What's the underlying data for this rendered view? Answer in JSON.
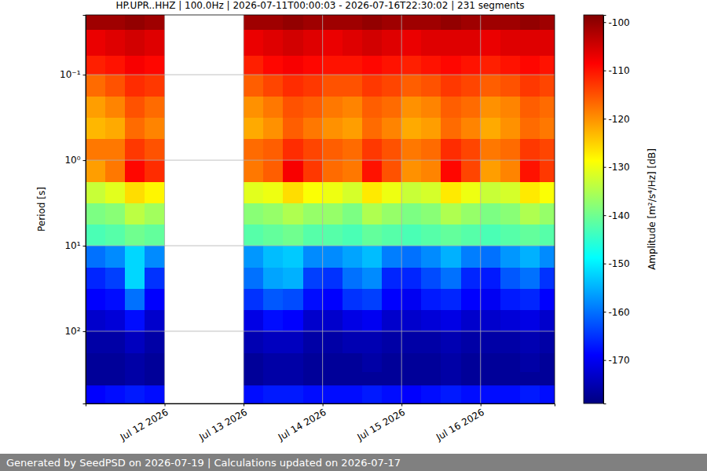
{
  "chart_data": {
    "type": "heatmap",
    "title": "HP.UPR..HHZ | 100.0Hz | 2026-07-11T00:00:03 - 2026-07-16T22:30:02 | 231 segments",
    "y_label": "Period [s]",
    "footer": "Generated by SeedPSD on 2026-07-19 | Calculations updated on 2026-07-17",
    "log": "y",
    "grid": true,
    "xlim": [
      "2026-07-11T00:00:03",
      "2026-07-16T22:30:02"
    ],
    "xticks": [
      {
        "value": "2026-07-12T00:00:00",
        "label": "Jul 12 2026"
      },
      {
        "value": "2026-07-13T00:00:00",
        "label": "Jul 13 2026"
      },
      {
        "value": "2026-07-14T00:00:00",
        "label": "Jul 14 2026"
      },
      {
        "value": "2026-07-15T00:00:00",
        "label": "Jul 15 2026"
      },
      {
        "value": "2026-07-16T00:00:00",
        "label": "Jul 16 2026"
      }
    ],
    "ylim": [
      0.02,
      700
    ],
    "yticks": [
      {
        "value": 0.1,
        "label": "10⁻¹"
      },
      {
        "value": 1,
        "label": "10⁰"
      },
      {
        "value": 10,
        "label": "10¹"
      },
      {
        "value": 100,
        "label": "10²"
      }
    ],
    "x_bins": [
      "2026-07-11T00:00:03",
      "2026-07-11T06:00:00",
      "2026-07-11T12:00:00",
      "2026-07-11T18:00:00",
      "2026-07-12T00:00:00",
      "2026-07-12T06:00:00",
      "2026-07-12T12:00:00",
      "2026-07-12T18:00:00",
      "2026-07-13T00:00:00",
      "2026-07-13T06:00:00",
      "2026-07-13T12:00:00",
      "2026-07-13T18:00:00",
      "2026-07-14T00:00:00",
      "2026-07-14T06:00:00",
      "2026-07-14T12:00:00",
      "2026-07-14T18:00:00",
      "2026-07-15T00:00:00",
      "2026-07-15T06:00:00",
      "2026-07-15T12:00:00",
      "2026-07-15T18:00:00",
      "2026-07-16T00:00:00",
      "2026-07-16T06:00:00",
      "2026-07-16T12:00:00",
      "2026-07-16T18:00:00",
      "2026-07-16T22:30:02"
    ],
    "y_bins": [
      0.02,
      0.03,
      0.06,
      0.1,
      0.18,
      0.32,
      0.56,
      1,
      1.8,
      3.2,
      5.6,
      10,
      18,
      32,
      56,
      100,
      180,
      300,
      430,
      700
    ],
    "values": [
      [
        -101,
        -101,
        -100,
        -101,
        null,
        null,
        null,
        null,
        -101,
        -101,
        -100,
        -101,
        -101,
        -101,
        -100,
        -101,
        -101,
        -101,
        -100,
        -101,
        -101,
        -101,
        -100,
        -101
      ],
      [
        -107,
        -106,
        -105,
        -106,
        null,
        null,
        null,
        null,
        -107,
        -106,
        -105,
        -106,
        -107,
        -106,
        -105,
        -106,
        -107,
        -106,
        -106,
        -106,
        -107,
        -106,
        -106,
        -106
      ],
      [
        -111,
        -110,
        -108,
        -109,
        null,
        null,
        null,
        null,
        -111,
        -109,
        -108,
        -109,
        -110,
        -110,
        -109,
        -110,
        -111,
        -110,
        -109,
        -110,
        -111,
        -110,
        -109,
        -110
      ],
      [
        -117,
        -115,
        -112,
        -113,
        null,
        null,
        null,
        null,
        -116,
        -114,
        -112,
        -113,
        -115,
        -115,
        -113,
        -114,
        -116,
        -115,
        -113,
        -114,
        -116,
        -115,
        -113,
        -114
      ],
      [
        -121,
        -119,
        -115,
        -117,
        null,
        null,
        null,
        null,
        -120,
        -118,
        -115,
        -116,
        -118,
        -119,
        -116,
        -117,
        -120,
        -119,
        -116,
        -117,
        -120,
        -119,
        -116,
        -117
      ],
      [
        -123,
        -122,
        -117,
        -119,
        null,
        null,
        null,
        null,
        -122,
        -120,
        -116,
        -118,
        -120,
        -121,
        -117,
        -119,
        -122,
        -121,
        -117,
        -119,
        -122,
        -120,
        -117,
        -118
      ],
      [
        -118,
        -118,
        -113,
        -115,
        null,
        null,
        null,
        null,
        -117,
        -116,
        -112,
        -114,
        -116,
        -117,
        -113,
        -115,
        -118,
        -117,
        -112,
        -114,
        -118,
        -117,
        -113,
        -114
      ],
      [
        -121,
        -118,
        -109,
        -112,
        null,
        null,
        null,
        null,
        -118,
        -116,
        -108,
        -113,
        -117,
        -118,
        -110,
        -115,
        -120,
        -119,
        -109,
        -114,
        -121,
        -119,
        -110,
        -113
      ],
      [
        -133,
        -131,
        -126,
        -128,
        null,
        null,
        null,
        null,
        -131,
        -130,
        -126,
        -129,
        -130,
        -132,
        -127,
        -130,
        -133,
        -132,
        -127,
        -130,
        -133,
        -132,
        -127,
        -129
      ],
      [
        -139,
        -138,
        -134,
        -136,
        null,
        null,
        null,
        null,
        -138,
        -137,
        -135,
        -137,
        -137,
        -139,
        -135,
        -137,
        -139,
        -138,
        -135,
        -137,
        -139,
        -138,
        -135,
        -137
      ],
      [
        -143,
        -142,
        -140,
        -141,
        null,
        null,
        null,
        null,
        -142,
        -141,
        -140,
        -142,
        -142,
        -143,
        -141,
        -142,
        -143,
        -142,
        -141,
        -142,
        -143,
        -142,
        -141,
        -142
      ],
      [
        -160,
        -158,
        -152,
        -158,
        null,
        null,
        null,
        null,
        -157,
        -154,
        -153,
        -158,
        -158,
        -156,
        -154,
        -159,
        -160,
        -158,
        -155,
        -159,
        -160,
        -157,
        -155,
        -158
      ],
      [
        -166,
        -164,
        -152,
        -165,
        null,
        null,
        null,
        null,
        -160,
        -156,
        -155,
        -164,
        -165,
        -160,
        -158,
        -166,
        -166,
        -163,
        -160,
        -166,
        -167,
        -162,
        -160,
        -165
      ],
      [
        -169,
        -168,
        -160,
        -169,
        null,
        null,
        null,
        null,
        -165,
        -162,
        -163,
        -168,
        -169,
        -165,
        -164,
        -169,
        -170,
        -167,
        -166,
        -169,
        -170,
        -167,
        -166,
        -169
      ],
      [
        -173,
        -172,
        -168,
        -173,
        null,
        null,
        null,
        null,
        -171,
        -168,
        -169,
        -173,
        -173,
        -171,
        -170,
        -173,
        -173,
        -172,
        -171,
        -173,
        -173,
        -172,
        -171,
        -173
      ],
      [
        -176,
        -176,
        -174,
        -176,
        null,
        null,
        null,
        null,
        -175,
        -174,
        -174,
        -176,
        -176,
        -175,
        -175,
        -176,
        -176,
        -176,
        -175,
        -176,
        -176,
        -176,
        -175,
        -176
      ],
      [
        -177,
        -177,
        -176,
        -177,
        null,
        null,
        null,
        null,
        -177,
        -176,
        -176,
        -177,
        -177,
        -177,
        -176,
        -177,
        -177,
        -177,
        -176,
        -177,
        -177,
        -177,
        -176,
        -177
      ],
      [
        -177,
        -177,
        -176,
        -177,
        null,
        null,
        null,
        null,
        -177,
        -176,
        -176,
        -177,
        -177,
        -177,
        -177,
        -177,
        -177,
        -177,
        -176,
        -177,
        -177,
        -177,
        -177,
        -177
      ],
      [
        -169,
        -168,
        -167,
        -168,
        null,
        null,
        null,
        null,
        -168,
        -167,
        -167,
        -168,
        -168,
        -168,
        -167,
        -168,
        -169,
        -168,
        -167,
        -168,
        -168,
        -168,
        -167,
        -168
      ]
    ],
    "colorbar": {
      "label": "Amplitude [m²/s⁴/Hz] [dB]",
      "range": [
        -179,
        -98.5
      ],
      "ticks": [
        -170,
        -160,
        -150,
        -140,
        -130,
        -120,
        -110,
        -100
      ]
    }
  }
}
